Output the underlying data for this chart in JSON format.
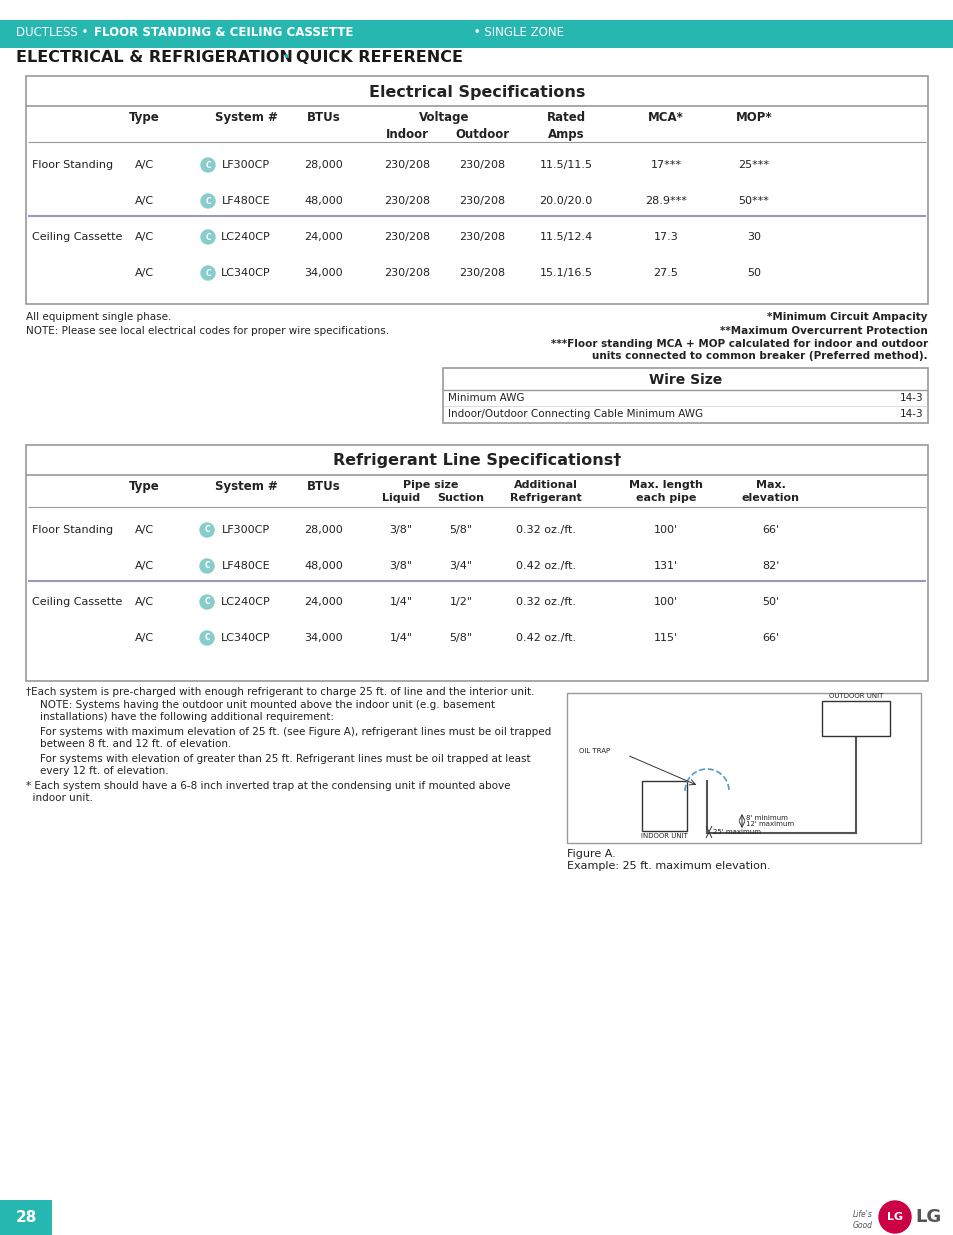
{
  "header_bg": "#26b8b0",
  "header_text_color": "#ffffff",
  "header_line1_normal": "DUCTLESS • ",
  "header_line1_bold": "FLOOR STANDING & CEILING CASSETTE",
  "header_line1_end": " • SINGLE ZONE",
  "header_line2_part1": "ELECTRICAL & REFRIGERATION",
  "header_line2_bullet": "•",
  "header_line2_part2": "QUICK REFERENCE",
  "page_number": "28",
  "teal_color": "#26b8b0",
  "dark_text": "#222222",
  "elec_title": "Electrical Specifications",
  "elec_rows": [
    [
      "Floor Standing",
      "A/C",
      "LF300CP",
      "28,000",
      "230/208",
      "230/208",
      "11.5/11.5",
      "17***",
      "25***"
    ],
    [
      "",
      "A/C",
      "LF480CE",
      "48,000",
      "230/208",
      "230/208",
      "20.0/20.0",
      "28.9***",
      "50***"
    ],
    [
      "Ceiling Cassette",
      "A/C",
      "LC240CP",
      "24,000",
      "230/208",
      "230/208",
      "11.5/12.4",
      "17.3",
      "30"
    ],
    [
      "",
      "A/C",
      "LC340CP",
      "34,000",
      "230/208",
      "230/208",
      "15.1/16.5",
      "27.5",
      "50"
    ]
  ],
  "note1": "All equipment single phase.",
  "note_star1": "*Minimum Circuit Ampacity",
  "note2": "NOTE: Please see local electrical codes for proper wire specifications.",
  "note_star2": "**Maximum Overcurrent Protection",
  "note_star3": "***Floor standing MCA + MOP calculated for indoor and outdoor\nunits connected to common breaker (Preferred method).",
  "wire_title": "Wire Size",
  "wire_rows": [
    [
      "Minimum AWG",
      "14-3"
    ],
    [
      "Indoor/Outdoor Connecting Cable Minimum AWG",
      "14-3"
    ]
  ],
  "refrig_title": "Refrigerant Line Specifications†",
  "refrig_rows": [
    [
      "Floor Standing",
      "A/C",
      "LF300CP",
      "28,000",
      "3/8\"",
      "5/8\"",
      "0.32 oz./ft.",
      "100'",
      "66'"
    ],
    [
      "",
      "A/C",
      "LF480CE",
      "48,000",
      "3/8\"",
      "3/4\"",
      "0.42 oz./ft.",
      "131'",
      "82'"
    ],
    [
      "Ceiling Cassette",
      "A/C",
      "LC240CP",
      "24,000",
      "1/4\"",
      "1/2\"",
      "0.32 oz./ft.",
      "100'",
      "50'"
    ],
    [
      "",
      "A/C",
      "LC340CP",
      "34,000",
      "1/4\"",
      "5/8\"",
      "0.42 oz./ft.",
      "115'",
      "66'"
    ]
  ],
  "footnote_dagger": "†Each system is pre-charged with enough refrigerant to charge 25 ft. of line and the interior unit.",
  "footnote_note": "NOTE: Systems having the outdoor unit mounted above the indoor unit (e.g. basement\ninstallations) have the following additional requirement:",
  "footnote_for1": "For systems with maximum elevation of 25 ft. (see Figure A), refrigerant lines must be oil trapped\nbetween 8 ft. and 12 ft. of elevation.",
  "footnote_for2": "For systems with elevation of greater than 25 ft. Refrigerant lines must be oil trapped at least\nevery 12 ft. of elevation.",
  "footnote_star": "* Each system should have a 6-8 inch inverted trap at the condensing unit if mounted above\n  indoor unit.",
  "figure_caption": "Figure A.\nExample: 25 ft. maximum elevation.",
  "icon_color": "#88cccc",
  "separator_color": "#9999bb",
  "border_color": "#999999"
}
